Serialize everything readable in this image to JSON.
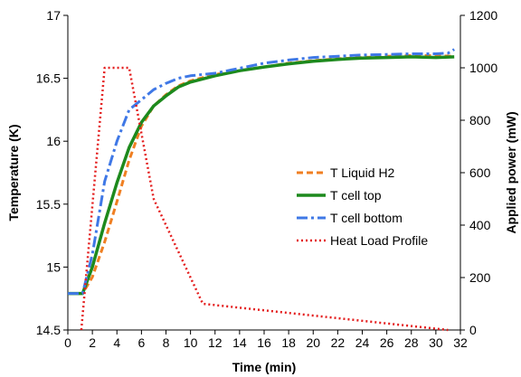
{
  "chart_data": {
    "type": "line",
    "title": "",
    "xlabel": "Time (min)",
    "ylabel_left": "Temperature (K)",
    "ylabel_right": "Applied power (mW)",
    "xlim": [
      0,
      32
    ],
    "ylim_left": [
      14.5,
      17
    ],
    "ylim_right": [
      0,
      1200
    ],
    "x_ticks": [
      "0",
      "2",
      "4",
      "6",
      "8",
      "10",
      "12",
      "14",
      "16",
      "18",
      "20",
      "22",
      "24",
      "26",
      "28",
      "30",
      "32"
    ],
    "y_left_ticks": [
      "14.5",
      "15",
      "15.5",
      "16",
      "16.5",
      "17"
    ],
    "y_right_ticks": [
      "0",
      "200",
      "400",
      "600",
      "800",
      "1000",
      "1200"
    ],
    "grid": false,
    "legend_position": "right",
    "series": [
      {
        "name": "T Liquid H2",
        "axis": "left",
        "color": "#f07f22",
        "style": "dashed",
        "points": [
          [
            0,
            14.79
          ],
          [
            1.2,
            14.79
          ],
          [
            2,
            14.92
          ],
          [
            3,
            15.2
          ],
          [
            4,
            15.52
          ],
          [
            5,
            15.85
          ],
          [
            6,
            16.12
          ],
          [
            7,
            16.28
          ],
          [
            8,
            16.37
          ],
          [
            9,
            16.44
          ],
          [
            10,
            16.48
          ],
          [
            12,
            16.53
          ],
          [
            14,
            16.56
          ],
          [
            16,
            16.59
          ],
          [
            18,
            16.62
          ],
          [
            20,
            16.64
          ],
          [
            22,
            16.655
          ],
          [
            24,
            16.665
          ],
          [
            26,
            16.675
          ],
          [
            28,
            16.68
          ],
          [
            30,
            16.68
          ],
          [
            31.5,
            16.675
          ]
        ]
      },
      {
        "name": "T cell top",
        "axis": "left",
        "color": "#1d8a1d",
        "style": "solid",
        "points": [
          [
            0,
            14.79
          ],
          [
            1.2,
            14.79
          ],
          [
            2,
            15.0
          ],
          [
            3,
            15.35
          ],
          [
            4,
            15.67
          ],
          [
            5,
            15.95
          ],
          [
            6,
            16.15
          ],
          [
            7,
            16.28
          ],
          [
            8,
            16.36
          ],
          [
            9,
            16.43
          ],
          [
            10,
            16.47
          ],
          [
            12,
            16.52
          ],
          [
            14,
            16.56
          ],
          [
            16,
            16.59
          ],
          [
            18,
            16.615
          ],
          [
            20,
            16.635
          ],
          [
            22,
            16.65
          ],
          [
            24,
            16.66
          ],
          [
            26,
            16.665
          ],
          [
            28,
            16.67
          ],
          [
            30,
            16.665
          ],
          [
            31.5,
            16.67
          ]
        ]
      },
      {
        "name": "T cell bottom",
        "axis": "left",
        "color": "#3f78e6",
        "style": "dashdot",
        "points": [
          [
            0,
            14.79
          ],
          [
            1.2,
            14.79
          ],
          [
            2,
            15.1
          ],
          [
            3,
            15.68
          ],
          [
            4,
            16.0
          ],
          [
            5,
            16.25
          ],
          [
            6,
            16.33
          ],
          [
            7,
            16.41
          ],
          [
            8,
            16.46
          ],
          [
            9,
            16.5
          ],
          [
            10,
            16.52
          ],
          [
            12,
            16.54
          ],
          [
            14,
            16.58
          ],
          [
            16,
            16.62
          ],
          [
            18,
            16.645
          ],
          [
            20,
            16.665
          ],
          [
            22,
            16.675
          ],
          [
            24,
            16.685
          ],
          [
            26,
            16.69
          ],
          [
            28,
            16.695
          ],
          [
            30,
            16.695
          ],
          [
            31,
            16.7
          ],
          [
            31.5,
            16.73
          ]
        ]
      },
      {
        "name": "Heat Load Profile",
        "axis": "right",
        "color": "#e41e1e",
        "style": "dotted",
        "points": [
          [
            1.1,
            0
          ],
          [
            3,
            1000
          ],
          [
            5,
            1000
          ],
          [
            7,
            500
          ],
          [
            11,
            100
          ],
          [
            31,
            0
          ]
        ]
      }
    ]
  }
}
